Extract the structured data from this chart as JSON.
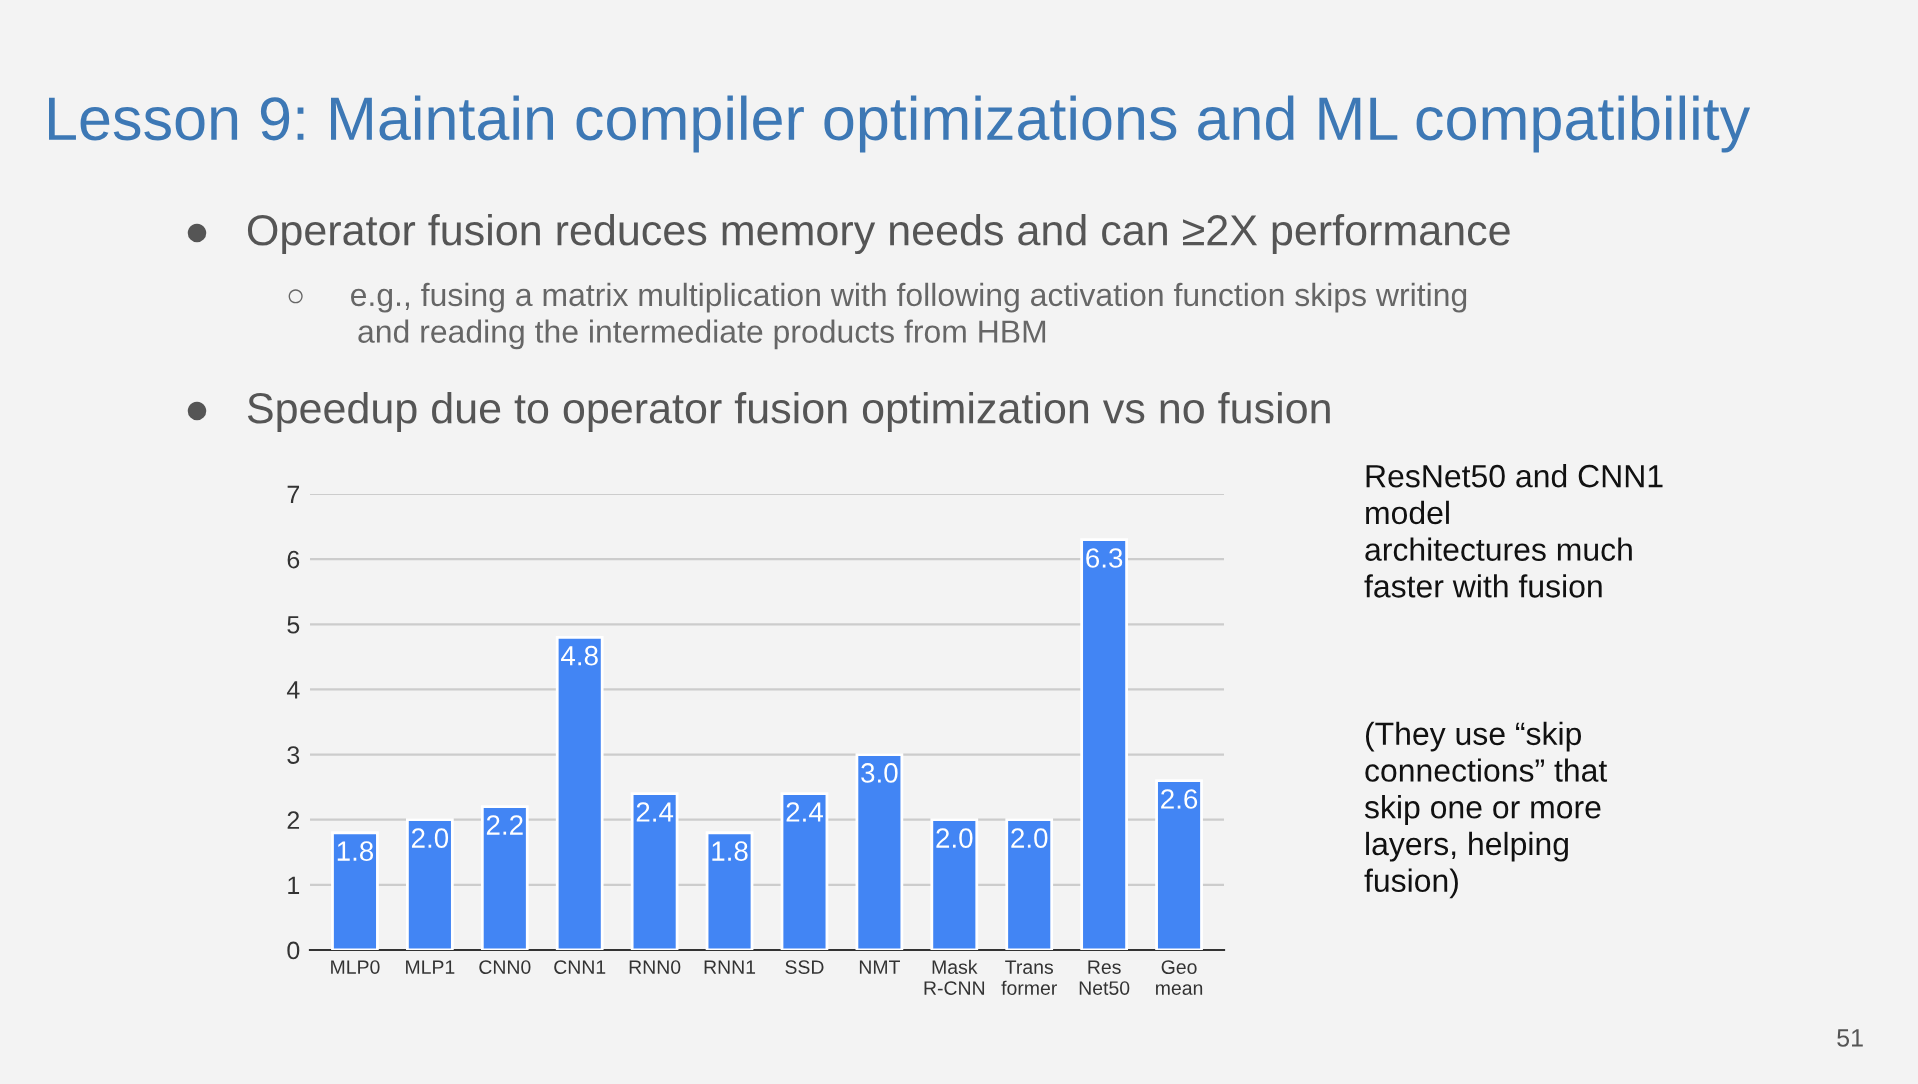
{
  "chart_data": {
    "type": "bar",
    "title": "Lesson 9: Maintain compiler optimizations and ML compatibility",
    "categories": [
      "MLP0",
      "MLP1",
      "CNN0",
      "CNN1",
      "RNN0",
      "RNN1",
      "SSD",
      "NMT",
      "Mask\nR-CNN",
      "Trans\nformer",
      "Res\nNet50",
      "Geo\nmean"
    ],
    "values": [
      1.8,
      2.0,
      2.2,
      4.8,
      2.4,
      1.8,
      2.4,
      3.0,
      2.0,
      2.0,
      6.3,
      2.6
    ],
    "color": "#4285f4",
    "value_labels": [
      "1.8",
      "2.0",
      "2.2",
      "4.8",
      "2.4",
      "1.8",
      "2.4",
      "3.0",
      "2.0",
      "2.0",
      "6.3",
      "2.6"
    ],
    "ylim": [
      0,
      7
    ],
    "yticks": [
      0,
      1,
      2,
      3,
      4,
      5,
      6,
      7
    ],
    "grid": "y",
    "annotations": [
      "●   Operator fusion reduces memory needs and can ≥2X performance",
      "○     e.g., fusing a matrix multiplication with following activation function skips writing\n        and reading the intermediate products from HBM",
      "●   Speedup due to operator fusion optimization vs no fusion",
      "ResNet50 and CNN1\nmodel\narchitectures much\nfaster with fusion",
      "(They use “skip\nconnections” that\nskip one or more\nlayers, helping\nfusion)",
      "51"
    ]
  }
}
